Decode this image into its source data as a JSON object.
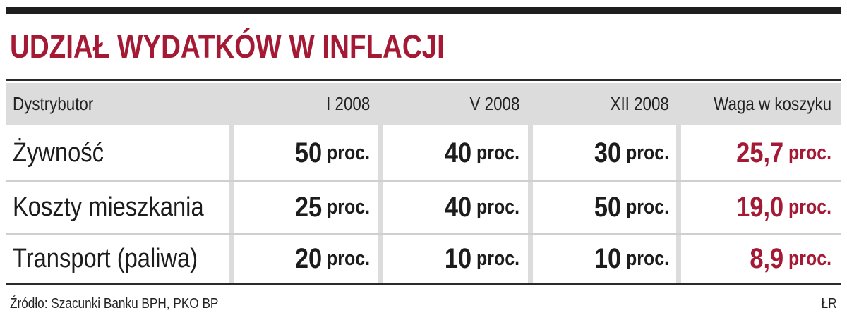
{
  "chart_data": {
    "type": "table",
    "title": "UDZIAŁ WYDATKÓW W INFLACJI",
    "columns": [
      "Dystrybutor",
      "I 2008",
      "V 2008",
      "XII 2008",
      "Waga w koszyku"
    ],
    "unit": "proc.",
    "rows": [
      {
        "label": "Żywność",
        "values": [
          "50",
          "40",
          "30"
        ],
        "weight": "25,7"
      },
      {
        "label": "Koszty mieszkania",
        "values": [
          "25",
          "40",
          "50"
        ],
        "weight": "19,0"
      },
      {
        "label": "Transport (paliwa)",
        "values": [
          "20",
          "10",
          "10"
        ],
        "weight": "8,9"
      }
    ],
    "source": "Źródło: Szacunki Banku BPH, PKO BP",
    "author": "ŁR"
  },
  "colors": {
    "accent": "#a41a35",
    "header_bg": "#dcdcdc",
    "text": "#1c1c1c"
  }
}
